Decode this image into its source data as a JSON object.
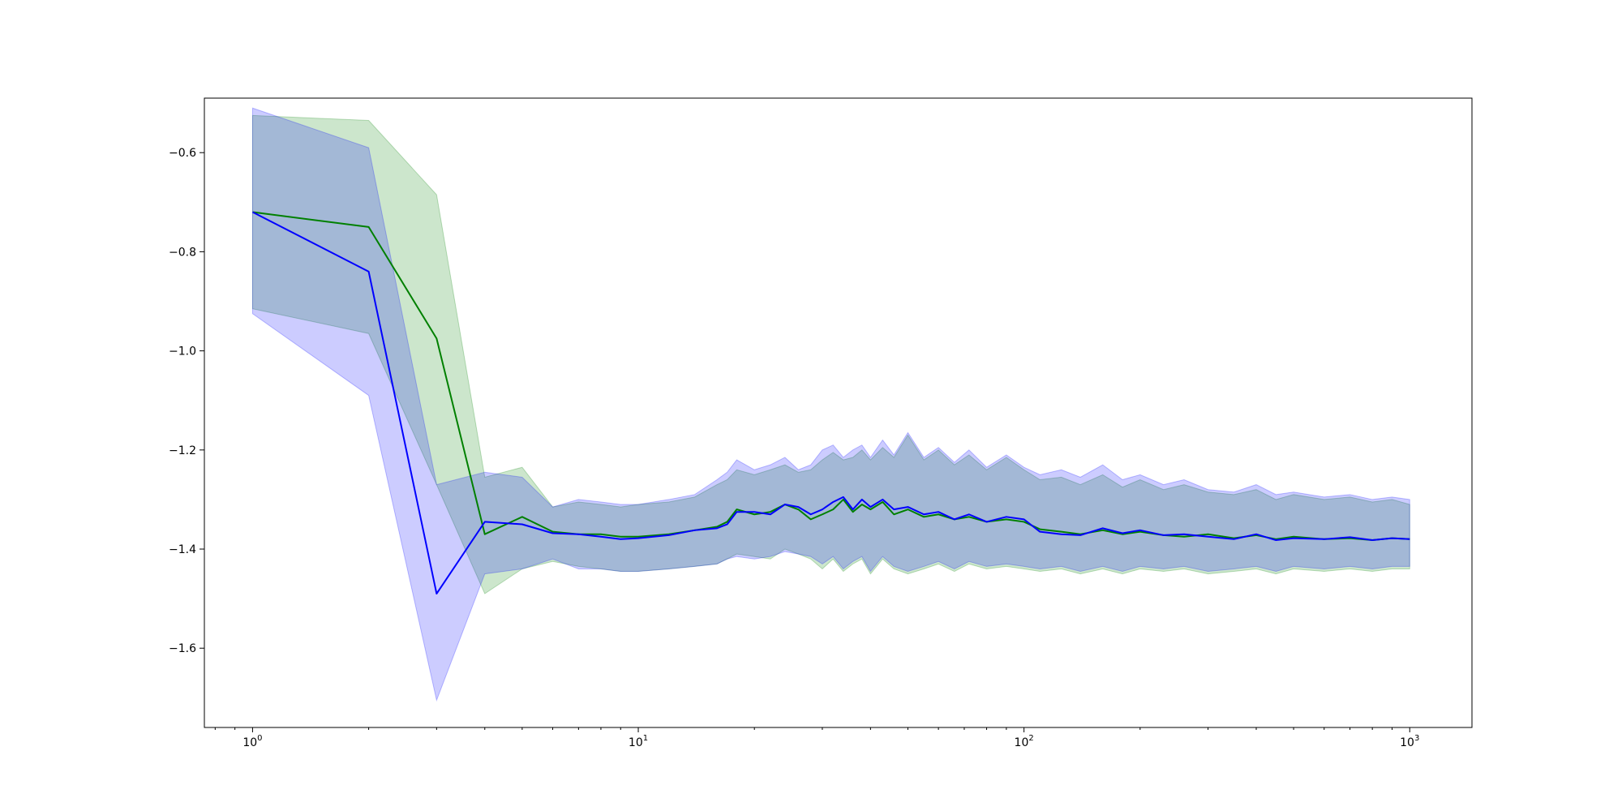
{
  "chart_data": {
    "type": "line",
    "title": "",
    "xlabel": "",
    "ylabel": "",
    "xscale": "log",
    "xlim": [
      0.75,
      1450
    ],
    "ylim": [
      -1.76,
      -0.49
    ],
    "grid": false,
    "legend": "none",
    "xticks": [
      {
        "base": "10",
        "exp": "0",
        "value": 1
      },
      {
        "base": "10",
        "exp": "1",
        "value": 10
      },
      {
        "base": "10",
        "exp": "2",
        "value": 100
      },
      {
        "base": "10",
        "exp": "3",
        "value": 1000
      }
    ],
    "yticks": [
      {
        "value": -0.6,
        "label": "−0.6"
      },
      {
        "value": -0.8,
        "label": "−0.8"
      },
      {
        "value": -1.0,
        "label": "−1.0"
      },
      {
        "value": -1.2,
        "label": "−1.2"
      },
      {
        "value": -1.4,
        "label": "−1.4"
      },
      {
        "value": -1.6,
        "label": "−1.6"
      }
    ],
    "series": [
      {
        "color": "#008000",
        "band_color": "#008000",
        "band_opacity": 0.2,
        "x": [
          1,
          2,
          3,
          4,
          5,
          6,
          7,
          8,
          9,
          10,
          12,
          14,
          16,
          17,
          18,
          20,
          22,
          24,
          26,
          28,
          30,
          32,
          34,
          36,
          38,
          40,
          43,
          46,
          50,
          55,
          60,
          66,
          72,
          80,
          90,
          100,
          110,
          125,
          140,
          160,
          180,
          200,
          230,
          260,
          300,
          350,
          400,
          450,
          500,
          600,
          700,
          800,
          900,
          1000
        ],
        "mean": [
          -0.72,
          -0.75,
          -0.975,
          -1.37,
          -1.335,
          -1.365,
          -1.37,
          -1.37,
          -1.375,
          -1.375,
          -1.37,
          -1.362,
          -1.355,
          -1.345,
          -1.32,
          -1.33,
          -1.325,
          -1.31,
          -1.32,
          -1.34,
          -1.33,
          -1.32,
          -1.3,
          -1.325,
          -1.31,
          -1.32,
          -1.305,
          -1.33,
          -1.32,
          -1.335,
          -1.33,
          -1.34,
          -1.335,
          -1.345,
          -1.34,
          -1.345,
          -1.36,
          -1.365,
          -1.37,
          -1.362,
          -1.37,
          -1.365,
          -1.372,
          -1.375,
          -1.37,
          -1.378,
          -1.372,
          -1.38,
          -1.375,
          -1.38,
          -1.378,
          -1.382,
          -1.378,
          -1.38
        ],
        "upper": [
          -0.525,
          -0.535,
          -0.685,
          -1.255,
          -1.235,
          -1.315,
          -1.305,
          -1.31,
          -1.315,
          -1.31,
          -1.305,
          -1.295,
          -1.27,
          -1.26,
          -1.24,
          -1.25,
          -1.24,
          -1.23,
          -1.245,
          -1.24,
          -1.22,
          -1.205,
          -1.22,
          -1.215,
          -1.2,
          -1.22,
          -1.195,
          -1.215,
          -1.17,
          -1.22,
          -1.2,
          -1.23,
          -1.21,
          -1.24,
          -1.215,
          -1.24,
          -1.26,
          -1.255,
          -1.27,
          -1.25,
          -1.275,
          -1.26,
          -1.28,
          -1.27,
          -1.285,
          -1.29,
          -1.28,
          -1.3,
          -1.29,
          -1.3,
          -1.295,
          -1.305,
          -1.3,
          -1.31
        ],
        "lower": [
          -0.915,
          -0.965,
          -1.27,
          -1.49,
          -1.44,
          -1.425,
          -1.435,
          -1.44,
          -1.445,
          -1.445,
          -1.44,
          -1.435,
          -1.43,
          -1.42,
          -1.41,
          -1.415,
          -1.42,
          -1.4,
          -1.41,
          -1.42,
          -1.44,
          -1.42,
          -1.445,
          -1.43,
          -1.42,
          -1.45,
          -1.42,
          -1.44,
          -1.45,
          -1.44,
          -1.43,
          -1.445,
          -1.43,
          -1.44,
          -1.435,
          -1.44,
          -1.445,
          -1.44,
          -1.45,
          -1.44,
          -1.45,
          -1.44,
          -1.445,
          -1.44,
          -1.45,
          -1.445,
          -1.44,
          -1.45,
          -1.44,
          -1.445,
          -1.44,
          -1.445,
          -1.44,
          -1.44
        ]
      },
      {
        "color": "#0000ff",
        "band_color": "#0000ff",
        "band_opacity": 0.2,
        "x": [
          1,
          2,
          3,
          4,
          5,
          6,
          7,
          8,
          9,
          10,
          12,
          14,
          16,
          17,
          18,
          20,
          22,
          24,
          26,
          28,
          30,
          32,
          34,
          36,
          38,
          40,
          43,
          46,
          50,
          55,
          60,
          66,
          72,
          80,
          90,
          100,
          110,
          125,
          140,
          160,
          180,
          200,
          230,
          260,
          300,
          350,
          400,
          450,
          500,
          600,
          700,
          800,
          900,
          1000
        ],
        "mean": [
          -0.72,
          -0.84,
          -1.49,
          -1.345,
          -1.35,
          -1.368,
          -1.37,
          -1.375,
          -1.38,
          -1.378,
          -1.372,
          -1.362,
          -1.358,
          -1.35,
          -1.325,
          -1.325,
          -1.33,
          -1.31,
          -1.315,
          -1.33,
          -1.32,
          -1.305,
          -1.295,
          -1.32,
          -1.3,
          -1.315,
          -1.3,
          -1.32,
          -1.315,
          -1.33,
          -1.325,
          -1.34,
          -1.33,
          -1.345,
          -1.335,
          -1.34,
          -1.365,
          -1.37,
          -1.372,
          -1.358,
          -1.368,
          -1.362,
          -1.372,
          -1.37,
          -1.375,
          -1.38,
          -1.37,
          -1.382,
          -1.378,
          -1.38,
          -1.376,
          -1.382,
          -1.378,
          -1.38
        ],
        "upper": [
          -0.51,
          -0.59,
          -1.27,
          -1.245,
          -1.255,
          -1.315,
          -1.3,
          -1.305,
          -1.31,
          -1.31,
          -1.3,
          -1.29,
          -1.26,
          -1.245,
          -1.22,
          -1.24,
          -1.23,
          -1.215,
          -1.24,
          -1.23,
          -1.2,
          -1.19,
          -1.215,
          -1.2,
          -1.19,
          -1.215,
          -1.18,
          -1.21,
          -1.165,
          -1.215,
          -1.195,
          -1.225,
          -1.2,
          -1.235,
          -1.21,
          -1.235,
          -1.25,
          -1.24,
          -1.255,
          -1.23,
          -1.26,
          -1.25,
          -1.27,
          -1.26,
          -1.28,
          -1.285,
          -1.27,
          -1.29,
          -1.285,
          -1.295,
          -1.29,
          -1.3,
          -1.295,
          -1.3
        ],
        "lower": [
          -0.925,
          -1.09,
          -1.705,
          -1.45,
          -1.44,
          -1.42,
          -1.44,
          -1.44,
          -1.445,
          -1.445,
          -1.44,
          -1.435,
          -1.43,
          -1.42,
          -1.415,
          -1.42,
          -1.415,
          -1.405,
          -1.41,
          -1.415,
          -1.43,
          -1.415,
          -1.44,
          -1.425,
          -1.415,
          -1.445,
          -1.415,
          -1.435,
          -1.445,
          -1.435,
          -1.425,
          -1.44,
          -1.425,
          -1.435,
          -1.43,
          -1.435,
          -1.44,
          -1.435,
          -1.445,
          -1.435,
          -1.445,
          -1.435,
          -1.44,
          -1.435,
          -1.445,
          -1.44,
          -1.435,
          -1.445,
          -1.435,
          -1.44,
          -1.435,
          -1.44,
          -1.435,
          -1.435
        ]
      }
    ]
  }
}
